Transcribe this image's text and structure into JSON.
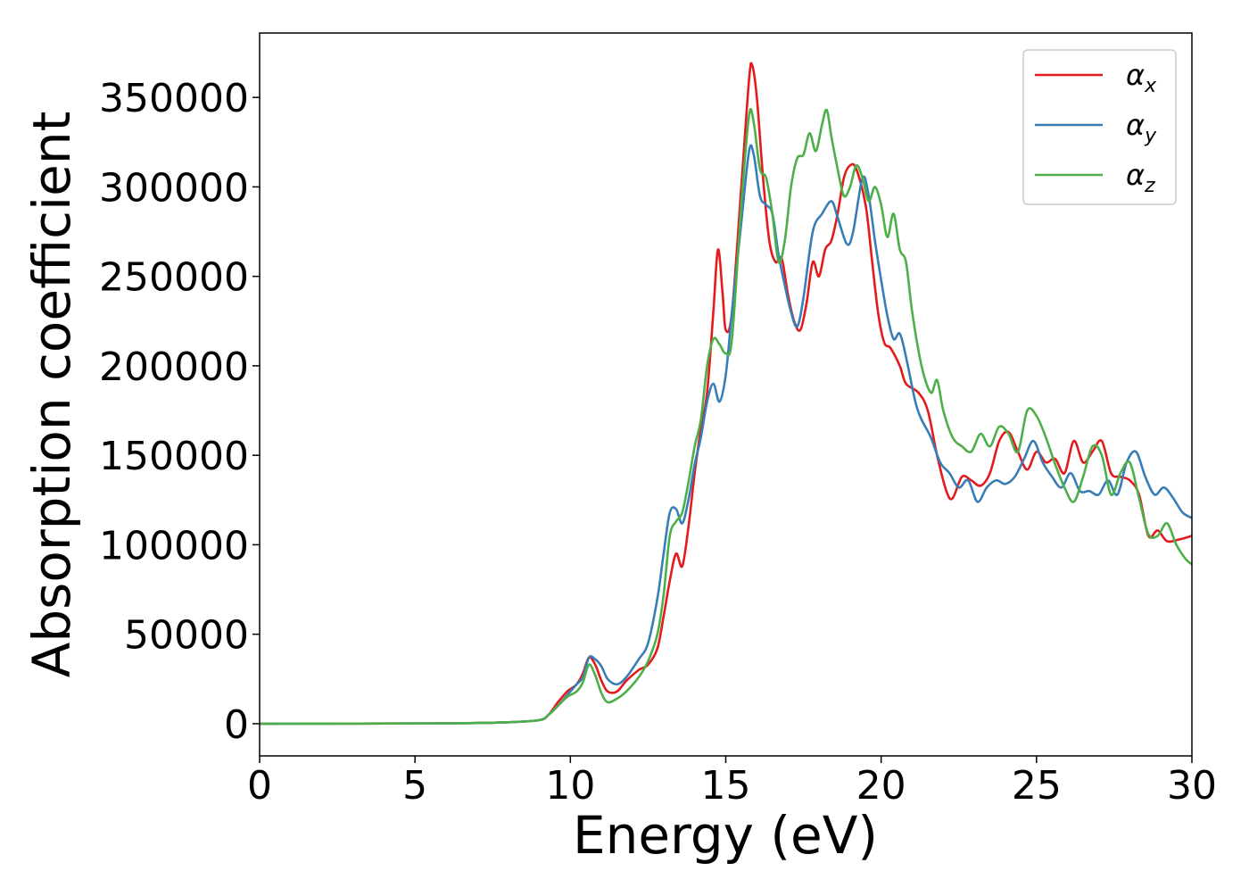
{
  "chart_data": {
    "type": "line",
    "title": "",
    "xlabel": "Energy (eV)",
    "ylabel": "Absorption coefficient",
    "xlim": [
      0,
      30
    ],
    "ylim": [
      -18000,
      386000
    ],
    "xticks": [
      0,
      5,
      10,
      15,
      20,
      25,
      30
    ],
    "xtick_labels": [
      "0",
      "5",
      "10",
      "15",
      "20",
      "25",
      "30"
    ],
    "yticks": [
      0,
      50000,
      100000,
      150000,
      200000,
      250000,
      300000,
      350000
    ],
    "ytick_labels": [
      "0",
      "50000",
      "100000",
      "150000",
      "200000",
      "250000",
      "300000",
      "350000"
    ],
    "grid": false,
    "legend_position": "top-right",
    "series": [
      {
        "name": "αx",
        "symbol": "α",
        "subscript": "x",
        "color": "#e41a1c",
        "points": [
          [
            0,
            0
          ],
          [
            6,
            200
          ],
          [
            8,
            800
          ],
          [
            9,
            2000
          ],
          [
            9.3,
            5000
          ],
          [
            9.6,
            12000
          ],
          [
            9.9,
            18000
          ],
          [
            10.2,
            22000
          ],
          [
            10.4,
            28000
          ],
          [
            10.6,
            37000
          ],
          [
            10.8,
            33000
          ],
          [
            11.0,
            24000
          ],
          [
            11.2,
            18000
          ],
          [
            11.5,
            18000
          ],
          [
            11.8,
            24000
          ],
          [
            12.2,
            30000
          ],
          [
            12.5,
            33000
          ],
          [
            12.8,
            42000
          ],
          [
            13.0,
            60000
          ],
          [
            13.2,
            80000
          ],
          [
            13.4,
            95000
          ],
          [
            13.6,
            88000
          ],
          [
            13.8,
            110000
          ],
          [
            14.0,
            140000
          ],
          [
            14.2,
            165000
          ],
          [
            14.4,
            185000
          ],
          [
            14.6,
            230000
          ],
          [
            14.75,
            265000
          ],
          [
            14.9,
            240000
          ],
          [
            15.0,
            220000
          ],
          [
            15.2,
            230000
          ],
          [
            15.5,
            300000
          ],
          [
            15.75,
            360000
          ],
          [
            15.85,
            368000
          ],
          [
            16.0,
            350000
          ],
          [
            16.2,
            305000
          ],
          [
            16.4,
            270000
          ],
          [
            16.6,
            258000
          ],
          [
            16.8,
            260000
          ],
          [
            17.0,
            240000
          ],
          [
            17.2,
            225000
          ],
          [
            17.4,
            220000
          ],
          [
            17.6,
            235000
          ],
          [
            17.8,
            258000
          ],
          [
            18.0,
            250000
          ],
          [
            18.2,
            265000
          ],
          [
            18.4,
            270000
          ],
          [
            18.6,
            285000
          ],
          [
            18.8,
            305000
          ],
          [
            19.0,
            312000
          ],
          [
            19.2,
            310000
          ],
          [
            19.5,
            290000
          ],
          [
            19.7,
            260000
          ],
          [
            19.9,
            230000
          ],
          [
            20.1,
            213000
          ],
          [
            20.3,
            210000
          ],
          [
            20.6,
            200000
          ],
          [
            20.8,
            190000
          ],
          [
            21.2,
            185000
          ],
          [
            21.5,
            175000
          ],
          [
            21.8,
            150000
          ],
          [
            22.1,
            130000
          ],
          [
            22.3,
            126000
          ],
          [
            22.6,
            138000
          ],
          [
            22.9,
            136000
          ],
          [
            23.2,
            133000
          ],
          [
            23.5,
            140000
          ],
          [
            23.8,
            158000
          ],
          [
            24.1,
            163000
          ],
          [
            24.4,
            152000
          ],
          [
            24.7,
            142000
          ],
          [
            25.0,
            152000
          ],
          [
            25.3,
            146000
          ],
          [
            25.6,
            148000
          ],
          [
            25.9,
            140000
          ],
          [
            26.2,
            158000
          ],
          [
            26.5,
            146000
          ],
          [
            26.8,
            152000
          ],
          [
            27.1,
            158000
          ],
          [
            27.4,
            140000
          ],
          [
            27.7,
            138000
          ],
          [
            28.0,
            136000
          ],
          [
            28.3,
            128000
          ],
          [
            28.6,
            105000
          ],
          [
            28.9,
            108000
          ],
          [
            29.2,
            102000
          ],
          [
            29.6,
            103000
          ],
          [
            30.0,
            105000
          ]
        ]
      },
      {
        "name": "αy",
        "symbol": "α",
        "subscript": "y",
        "color": "#377eb8",
        "points": [
          [
            0,
            0
          ],
          [
            6,
            200
          ],
          [
            8,
            800
          ],
          [
            9,
            2000
          ],
          [
            9.3,
            5000
          ],
          [
            9.6,
            10000
          ],
          [
            9.9,
            16000
          ],
          [
            10.2,
            22000
          ],
          [
            10.4,
            26000
          ],
          [
            10.6,
            37000
          ],
          [
            10.8,
            36000
          ],
          [
            11.0,
            32000
          ],
          [
            11.2,
            25000
          ],
          [
            11.5,
            22000
          ],
          [
            11.8,
            26000
          ],
          [
            12.2,
            36000
          ],
          [
            12.5,
            45000
          ],
          [
            12.8,
            70000
          ],
          [
            13.0,
            95000
          ],
          [
            13.2,
            118000
          ],
          [
            13.4,
            120000
          ],
          [
            13.6,
            112000
          ],
          [
            13.8,
            125000
          ],
          [
            14.0,
            145000
          ],
          [
            14.2,
            160000
          ],
          [
            14.4,
            180000
          ],
          [
            14.6,
            190000
          ],
          [
            14.8,
            180000
          ],
          [
            15.0,
            195000
          ],
          [
            15.2,
            230000
          ],
          [
            15.5,
            280000
          ],
          [
            15.75,
            320000
          ],
          [
            15.9,
            318000
          ],
          [
            16.1,
            295000
          ],
          [
            16.3,
            290000
          ],
          [
            16.5,
            285000
          ],
          [
            16.7,
            262000
          ],
          [
            16.9,
            245000
          ],
          [
            17.1,
            230000
          ],
          [
            17.3,
            222000
          ],
          [
            17.5,
            238000
          ],
          [
            17.8,
            275000
          ],
          [
            18.1,
            285000
          ],
          [
            18.4,
            292000
          ],
          [
            18.6,
            283000
          ],
          [
            18.9,
            268000
          ],
          [
            19.1,
            275000
          ],
          [
            19.4,
            305000
          ],
          [
            19.6,
            295000
          ],
          [
            19.8,
            270000
          ],
          [
            20.0,
            248000
          ],
          [
            20.2,
            228000
          ],
          [
            20.4,
            215000
          ],
          [
            20.6,
            218000
          ],
          [
            20.8,
            205000
          ],
          [
            21.1,
            180000
          ],
          [
            21.3,
            170000
          ],
          [
            21.6,
            160000
          ],
          [
            21.9,
            146000
          ],
          [
            22.2,
            140000
          ],
          [
            22.5,
            132000
          ],
          [
            22.8,
            136000
          ],
          [
            23.1,
            124000
          ],
          [
            23.4,
            132000
          ],
          [
            23.7,
            136000
          ],
          [
            24.0,
            134000
          ],
          [
            24.3,
            138000
          ],
          [
            24.6,
            148000
          ],
          [
            24.9,
            158000
          ],
          [
            25.2,
            146000
          ],
          [
            25.5,
            138000
          ],
          [
            25.8,
            132000
          ],
          [
            26.1,
            140000
          ],
          [
            26.4,
            130000
          ],
          [
            26.7,
            130000
          ],
          [
            27.0,
            128000
          ],
          [
            27.3,
            136000
          ],
          [
            27.6,
            128000
          ],
          [
            27.9,
            146000
          ],
          [
            28.2,
            152000
          ],
          [
            28.5,
            138000
          ],
          [
            28.8,
            128000
          ],
          [
            29.1,
            132000
          ],
          [
            29.4,
            126000
          ],
          [
            29.7,
            118000
          ],
          [
            30.0,
            115000
          ]
        ]
      },
      {
        "name": "αz",
        "symbol": "α",
        "subscript": "z",
        "color": "#4daf4a",
        "points": [
          [
            0,
            0
          ],
          [
            6,
            200
          ],
          [
            8,
            800
          ],
          [
            9,
            2000
          ],
          [
            9.3,
            5000
          ],
          [
            9.6,
            10000
          ],
          [
            9.9,
            15000
          ],
          [
            10.2,
            18000
          ],
          [
            10.4,
            23000
          ],
          [
            10.6,
            33000
          ],
          [
            10.8,
            27000
          ],
          [
            11.0,
            17000
          ],
          [
            11.2,
            12000
          ],
          [
            11.5,
            14000
          ],
          [
            11.8,
            18000
          ],
          [
            12.2,
            26000
          ],
          [
            12.5,
            35000
          ],
          [
            12.8,
            50000
          ],
          [
            13.0,
            72000
          ],
          [
            13.2,
            105000
          ],
          [
            13.4,
            113000
          ],
          [
            13.6,
            118000
          ],
          [
            13.8,
            135000
          ],
          [
            14.0,
            155000
          ],
          [
            14.2,
            170000
          ],
          [
            14.4,
            200000
          ],
          [
            14.6,
            215000
          ],
          [
            14.8,
            212000
          ],
          [
            15.0,
            207000
          ],
          [
            15.2,
            215000
          ],
          [
            15.5,
            290000
          ],
          [
            15.75,
            340000
          ],
          [
            15.9,
            336000
          ],
          [
            16.1,
            310000
          ],
          [
            16.3,
            305000
          ],
          [
            16.5,
            285000
          ],
          [
            16.7,
            258000
          ],
          [
            16.9,
            270000
          ],
          [
            17.1,
            300000
          ],
          [
            17.3,
            316000
          ],
          [
            17.5,
            318000
          ],
          [
            17.7,
            330000
          ],
          [
            17.9,
            320000
          ],
          [
            18.1,
            335000
          ],
          [
            18.25,
            343000
          ],
          [
            18.4,
            328000
          ],
          [
            18.6,
            310000
          ],
          [
            18.8,
            295000
          ],
          [
            19.0,
            300000
          ],
          [
            19.2,
            312000
          ],
          [
            19.4,
            305000
          ],
          [
            19.6,
            292000
          ],
          [
            19.8,
            300000
          ],
          [
            20.0,
            290000
          ],
          [
            20.2,
            272000
          ],
          [
            20.4,
            285000
          ],
          [
            20.6,
            265000
          ],
          [
            20.8,
            258000
          ],
          [
            21.0,
            230000
          ],
          [
            21.3,
            200000
          ],
          [
            21.6,
            185000
          ],
          [
            21.8,
            192000
          ],
          [
            22.0,
            175000
          ],
          [
            22.3,
            160000
          ],
          [
            22.6,
            155000
          ],
          [
            22.9,
            152000
          ],
          [
            23.2,
            162000
          ],
          [
            23.5,
            155000
          ],
          [
            23.8,
            166000
          ],
          [
            24.1,
            162000
          ],
          [
            24.4,
            152000
          ],
          [
            24.7,
            175000
          ],
          [
            25.0,
            172000
          ],
          [
            25.3,
            160000
          ],
          [
            25.6,
            145000
          ],
          [
            25.9,
            132000
          ],
          [
            26.2,
            124000
          ],
          [
            26.5,
            138000
          ],
          [
            26.8,
            155000
          ],
          [
            27.1,
            150000
          ],
          [
            27.4,
            128000
          ],
          [
            27.7,
            140000
          ],
          [
            28.0,
            146000
          ],
          [
            28.3,
            126000
          ],
          [
            28.6,
            106000
          ],
          [
            28.9,
            105000
          ],
          [
            29.2,
            112000
          ],
          [
            29.5,
            100000
          ],
          [
            29.8,
            92000
          ],
          [
            30.0,
            89000
          ]
        ]
      }
    ]
  }
}
